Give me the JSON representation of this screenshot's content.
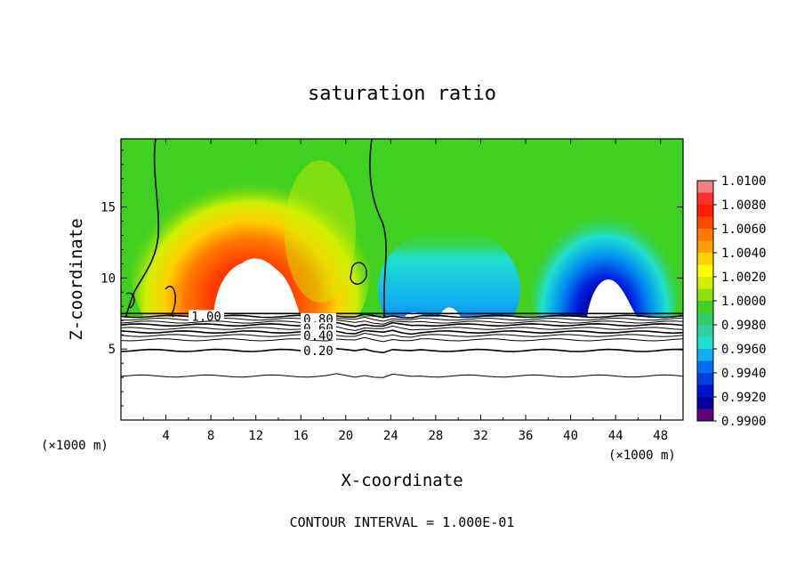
{
  "chart_data": {
    "type": "heatmap",
    "title": "saturation ratio",
    "xlabel": "X-coordinate",
    "ylabel": "Z-coordinate",
    "x_unit_left": "(×1000 m)",
    "x_unit_right": "(×1000 m)",
    "xlim": [
      0,
      50
    ],
    "ylim": [
      0,
      19.8
    ],
    "x_ticks": [
      "4",
      "8",
      "12",
      "16",
      "20",
      "24",
      "28",
      "32",
      "36",
      "40",
      "44",
      "48"
    ],
    "y_ticks": [
      "5",
      "10",
      "15"
    ],
    "grid": false,
    "colorbar": {
      "labels": [
        "1.0100",
        "1.0080",
        "1.0060",
        "1.0040",
        "1.0020",
        "1.0000",
        "0.9980",
        "0.9960",
        "0.9940",
        "0.9920",
        "0.9900"
      ],
      "colors": [
        "#f08080",
        "#ff3030",
        "#ff1e00",
        "#ff4800",
        "#ff7800",
        "#ffa000",
        "#ffd000",
        "#ffff00",
        "#d0f000",
        "#90e010",
        "#40d020",
        "#30d060",
        "#30d0a0",
        "#20e0d0",
        "#10b0f0",
        "#0070f0",
        "#0040e0",
        "#0010d0",
        "#0000a0",
        "#600080"
      ]
    },
    "features": {
      "warm_cloud_center_x": 11.5,
      "warm_cloud_top_z": 11.8,
      "cold_cloud_center_x": 43,
      "cold_cloud_top_z": 10.2,
      "base_level_z": 7.5
    },
    "contour_labels": [
      "1.00",
      "0.80",
      "0.60",
      "0.40",
      "0.20"
    ],
    "contour_levels_below": [
      7.3,
      7.1,
      6.9,
      6.7,
      6.45,
      6.2,
      5.95,
      5.65,
      4.9,
      3.1
    ]
  },
  "footer": {
    "contour_interval": "CONTOUR INTERVAL = 1.000E-01"
  },
  "colors": {
    "background": "#ffffff",
    "axis": "#000000",
    "field_green": "#40d020"
  }
}
